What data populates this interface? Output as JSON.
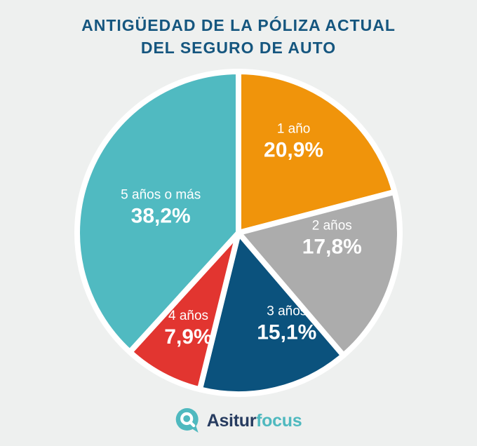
{
  "header": {
    "line1": "ANTIGÜEDAD DE LA PÓLIZA ACTUAL",
    "line2": "DEL SEGURO DE AUTO"
  },
  "chart_data": {
    "type": "pie",
    "title": "ANTIGÜEDAD DE LA PÓLIZA ACTUAL DEL SEGURO DE AUTO",
    "unit": "%",
    "start_angle_deg": 0,
    "direction": "clockwise",
    "legend_position": "none",
    "labels_inside_slices": true,
    "slices": [
      {
        "label": "1 año",
        "value": 20.9,
        "display": "20,9%",
        "color": "#F0940B"
      },
      {
        "label": "2 años",
        "value": 17.8,
        "display": "17,8%",
        "color": "#ACACAC"
      },
      {
        "label": "3 años",
        "value": 15.1,
        "display": "15,1%",
        "color": "#0B527D"
      },
      {
        "label": "4 años",
        "value": 7.9,
        "display": "7,9%",
        "color": "#E23530"
      },
      {
        "label": "5 años o más",
        "value": 38.2,
        "display": "38,2%",
        "color": "#50BAC1"
      }
    ],
    "separator_color": "#FFFFFF",
    "slice_label_color": "#FFFFFF"
  },
  "logo": {
    "brand_primary": "Asitur",
    "brand_secondary": "focus",
    "icon": "magnifier-q-icon"
  },
  "colors": {
    "background": "#EEF0EF",
    "title": "#15567F",
    "logo_primary": "#273C60",
    "logo_secondary": "#4FB9BF"
  }
}
